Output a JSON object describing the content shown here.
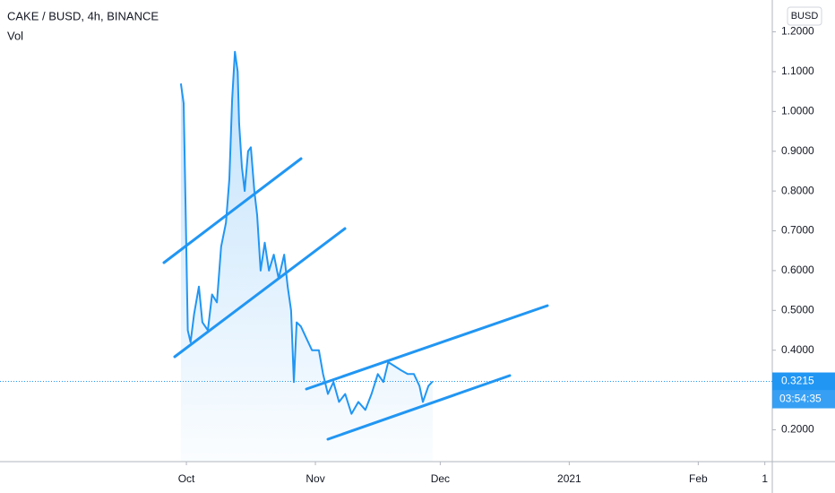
{
  "chart_data": {
    "type": "line",
    "title": "CAKE / BUSD, 4h, BINANCE",
    "subtitle": "Vol",
    "currency_button": "BUSD",
    "price_label": "0.3215",
    "countdown": "03:54:35",
    "color": "#2196f3",
    "x": [
      "2020-09-29T16:00",
      "2020-09-30T08:00",
      "2020-09-30T20:00",
      "2020-10-01T08:00",
      "2020-10-02T00:00",
      "2020-10-02T20:00",
      "2020-10-04T00:00",
      "2020-10-04T20:00",
      "2020-10-06T04:00",
      "2020-10-07T04:00",
      "2020-10-08T08:00",
      "2020-10-09T08:00",
      "2020-10-10T12:00",
      "2020-10-11T08:00",
      "2020-10-12T00:00",
      "2020-10-12T16:00",
      "2020-10-13T08:00",
      "2020-10-13T16:00",
      "2020-10-14T08:00",
      "2020-10-15T00:00",
      "2020-10-15T20:00",
      "2020-10-16T12:00",
      "2020-10-17T08:00",
      "2020-10-18T00:00",
      "2020-10-18T20:00",
      "2020-10-19T20:00",
      "2020-10-20T20:00",
      "2020-10-22T00:00",
      "2020-10-23T04:00",
      "2020-10-24T12:00",
      "2020-10-25T08:00",
      "2020-10-26T04:00",
      "2020-10-26T20:00",
      "2020-10-27T12:00",
      "2020-10-28T12:00",
      "2020-10-29T20:00",
      "2020-10-31T04:00",
      "2020-11-01T20:00",
      "2020-11-02T20:00",
      "2020-11-04T00:00",
      "2020-11-05T08:00",
      "2020-11-06T16:00",
      "2020-11-08T04:00",
      "2020-11-09T16:00",
      "2020-11-11T08:00",
      "2020-11-13T00:00",
      "2020-11-14T12:00",
      "2020-11-16T00:00",
      "2020-11-17T08:00",
      "2020-11-18T12:00",
      "2020-11-20T00:00",
      "2020-11-21T12:00",
      "2020-11-23T04:00",
      "2020-11-24T16:00",
      "2020-11-26T00:00",
      "2020-11-26T20:00",
      "2020-11-28T04:00",
      "2020-11-29T04:00"
    ],
    "values": [
      1.07,
      1.02,
      0.74,
      0.45,
      0.42,
      0.49,
      0.56,
      0.47,
      0.45,
      0.54,
      0.52,
      0.66,
      0.72,
      0.83,
      1.03,
      1.15,
      1.1,
      0.97,
      0.86,
      0.8,
      0.9,
      0.91,
      0.8,
      0.74,
      0.6,
      0.67,
      0.6,
      0.64,
      0.58,
      0.64,
      0.56,
      0.5,
      0.32,
      0.47,
      0.46,
      0.43,
      0.4,
      0.4,
      0.34,
      0.29,
      0.32,
      0.27,
      0.29,
      0.24,
      0.27,
      0.25,
      0.29,
      0.34,
      0.32,
      0.37,
      0.36,
      0.35,
      0.34,
      0.34,
      0.31,
      0.27,
      0.31,
      0.3215
    ],
    "xlim": [
      "2020-08-17T05:00",
      "2021-02-18T19:00"
    ],
    "xticks": [
      {
        "value": "2020-10-01T00:00",
        "label": "Oct"
      },
      {
        "value": "2020-11-01T00:00",
        "label": "Nov"
      },
      {
        "value": "2020-12-01T00:00",
        "label": "Dec"
      },
      {
        "value": "2021-01-01T00:00",
        "label": "2021"
      },
      {
        "value": "2021-02-01T00:00",
        "label": "Feb"
      },
      {
        "value": "2021-02-17T00:00",
        "label": "1"
      }
    ],
    "ylim": [
      0.12,
      1.28
    ],
    "yticks": [
      {
        "value": 0.2,
        "label": "0.2000"
      },
      {
        "value": 0.4,
        "label": "0.4000"
      },
      {
        "value": 0.5,
        "label": "0.5000"
      },
      {
        "value": 0.6,
        "label": "0.6000"
      },
      {
        "value": 0.7,
        "label": "0.7000"
      },
      {
        "value": 0.8,
        "label": "0.8000"
      },
      {
        "value": 0.9,
        "label": "0.9000"
      },
      {
        "value": 1.0,
        "label": "1.0000"
      },
      {
        "value": 1.1,
        "label": "1.1000"
      },
      {
        "value": 1.2,
        "label": "1.2000"
      }
    ]
  }
}
